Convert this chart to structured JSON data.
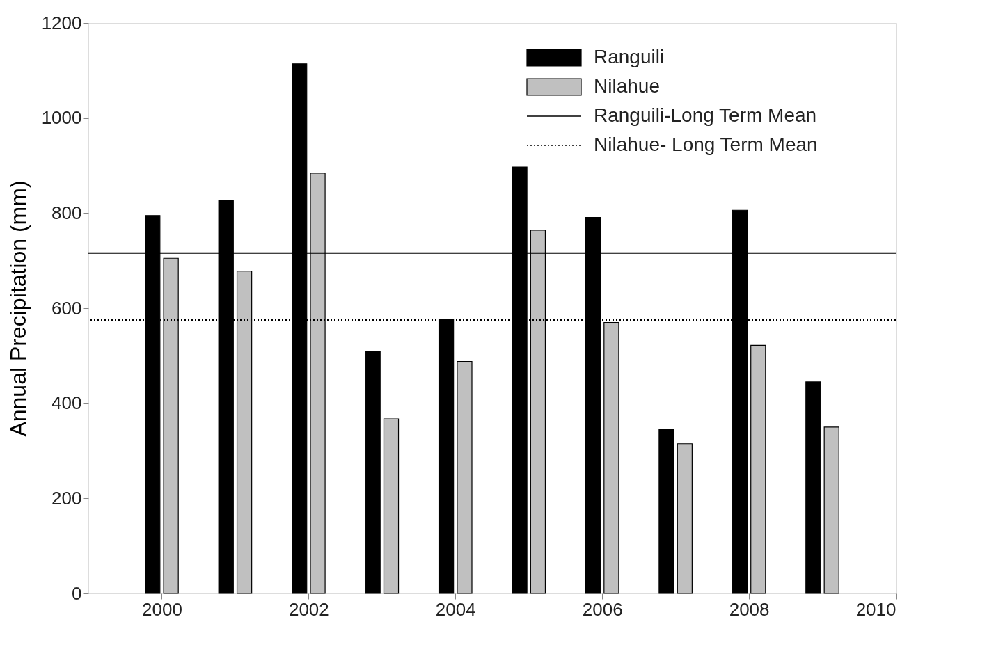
{
  "chart_data": {
    "type": "bar",
    "ylabel": "Annual Precipitation (mm)",
    "x": [
      2000,
      2001,
      2002,
      2003,
      2004,
      2005,
      2006,
      2007,
      2008,
      2009
    ],
    "series": [
      {
        "name": "Ranguili",
        "color": "#000000",
        "values": [
          795,
          826,
          1114,
          510,
          576,
          897,
          791,
          346,
          806,
          445
        ]
      },
      {
        "name": "Nilahue",
        "color": "#c0c0c0",
        "values": [
          705,
          678,
          884,
          367,
          488,
          764,
          570,
          315,
          522,
          350
        ]
      }
    ],
    "ref_lines": [
      {
        "axis": "y",
        "value": 716,
        "label": "Ranguili-Long Term Mean",
        "color": "#000000",
        "line_style": "solid"
      },
      {
        "axis": "y",
        "value": 575,
        "label": "Nilahue- Long Term Mean",
        "color": "#000000",
        "line_style": "dotted"
      }
    ],
    "xlim": [
      1999,
      2010
    ],
    "xticks": [
      2000,
      2002,
      2004,
      2006,
      2008,
      2010
    ],
    "ylim": [
      0,
      1200
    ],
    "yticks": [
      0,
      200,
      400,
      600,
      800,
      1000,
      1200
    ],
    "grid": false,
    "legend": "top right"
  }
}
